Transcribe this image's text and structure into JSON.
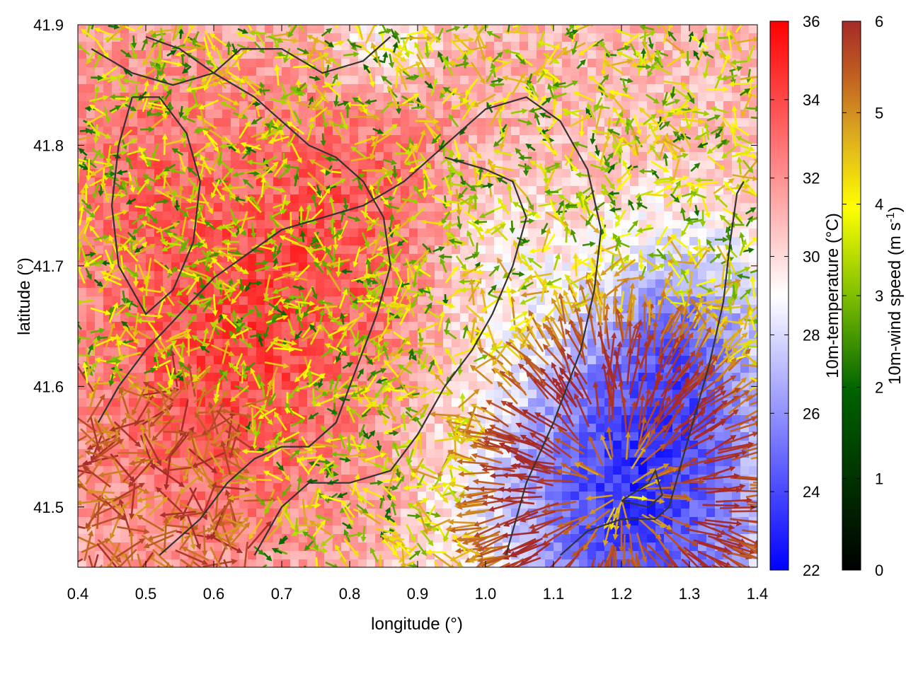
{
  "chart_data": {
    "type": "heatmap",
    "xlabel": "longitude (°)",
    "ylabel": "latitude (°)",
    "xlim": [
      0.4,
      1.4
    ],
    "ylim": [
      41.45,
      41.9
    ],
    "x_ticks": [
      "0.4",
      "0.5",
      "0.6",
      "0.7",
      "0.8",
      "0.9",
      "1.0",
      "1.1",
      "1.2",
      "1.3",
      "1.4"
    ],
    "y_ticks": [
      "41.5",
      "41.6",
      "41.7",
      "41.8",
      "41.9"
    ],
    "grid": false,
    "temperature_colorbar": {
      "label": "10m-temperature (°C)",
      "range": [
        22,
        36
      ],
      "ticks": [
        "22",
        "24",
        "26",
        "28",
        "30",
        "32",
        "34",
        "36"
      ],
      "colors": [
        "#0000ff",
        "#ffffff",
        "#ff0000"
      ]
    },
    "wind_colorbar": {
      "label_main": "10m-wind speed (m s",
      "label_exp": "-1",
      "label_end": ")",
      "range": [
        0,
        6
      ],
      "ticks": [
        "0",
        "1",
        "2",
        "3",
        "4",
        "5",
        "6"
      ],
      "colors": [
        "#000000",
        "#006400",
        "#7fbf00",
        "#ffff00",
        "#daa520",
        "#c06020",
        "#a52a2a"
      ]
    },
    "temperature_field": {
      "background_c": 31,
      "warm_zones": [
        {
          "lon": 0.62,
          "lat": 41.62,
          "radius": 0.22,
          "delta_c": 3.0
        },
        {
          "lon": 0.82,
          "lat": 41.76,
          "radius": 0.18,
          "delta_c": 2.0
        },
        {
          "lon": 0.48,
          "lat": 41.8,
          "radius": 0.14,
          "delta_c": 1.5
        }
      ],
      "cool_zones": [
        {
          "lon": 1.22,
          "lat": 41.51,
          "radius": 0.22,
          "delta_c": -7.5
        },
        {
          "lon": 1.3,
          "lat": 41.65,
          "radius": 0.12,
          "delta_c": -3.0
        },
        {
          "lon": 0.85,
          "lat": 41.89,
          "radius": 0.08,
          "delta_c": -2.5
        },
        {
          "lon": 1.0,
          "lat": 41.72,
          "radius": 0.1,
          "delta_c": -1.5
        }
      ]
    },
    "wind_field": {
      "outflow_center": {
        "lon": 1.2,
        "lat": 41.51
      },
      "outflow_speed_ms": 6,
      "ambient_speed_ms": [
        1,
        4
      ]
    },
    "contours": [
      [
        [
          0.52,
          41.46
        ],
        [
          0.58,
          41.49
        ],
        [
          0.62,
          41.52
        ],
        [
          0.66,
          41.54
        ],
        [
          0.7,
          41.55
        ],
        [
          0.74,
          41.55
        ],
        [
          0.78,
          41.57
        ],
        [
          0.8,
          41.6
        ],
        [
          0.84,
          41.66
        ],
        [
          0.86,
          41.7
        ],
        [
          0.85,
          41.74
        ],
        [
          0.82,
          41.77
        ],
        [
          0.78,
          41.79
        ],
        [
          0.74,
          41.8
        ],
        [
          0.7,
          41.82
        ],
        [
          0.66,
          41.84
        ],
        [
          0.6,
          41.86
        ],
        [
          0.55,
          41.88
        ],
        [
          0.5,
          41.89
        ]
      ],
      [
        [
          0.43,
          41.57
        ],
        [
          0.46,
          41.6
        ],
        [
          0.5,
          41.63
        ],
        [
          0.55,
          41.66
        ],
        [
          0.6,
          41.69
        ],
        [
          0.65,
          41.71
        ],
        [
          0.7,
          41.73
        ],
        [
          0.76,
          41.74
        ],
        [
          0.82,
          41.75
        ],
        [
          0.88,
          41.77
        ],
        [
          0.94,
          41.8
        ],
        [
          1.0,
          41.83
        ],
        [
          1.06,
          41.84
        ],
        [
          1.11,
          41.82
        ],
        [
          1.15,
          41.78
        ],
        [
          1.17,
          41.73
        ],
        [
          1.16,
          41.68
        ],
        [
          1.14,
          41.63
        ],
        [
          1.1,
          41.57
        ],
        [
          1.06,
          41.52
        ],
        [
          1.03,
          41.46
        ]
      ],
      [
        [
          0.66,
          41.46
        ],
        [
          0.7,
          41.5
        ],
        [
          0.74,
          41.52
        ],
        [
          0.8,
          41.52
        ],
        [
          0.86,
          41.53
        ],
        [
          0.9,
          41.56
        ],
        [
          0.94,
          41.6
        ],
        [
          0.98,
          41.63
        ],
        [
          1.01,
          41.66
        ],
        [
          1.04,
          41.7
        ],
        [
          1.06,
          41.74
        ],
        [
          1.04,
          41.77
        ],
        [
          1.0,
          41.78
        ],
        [
          0.94,
          41.79
        ]
      ],
      [
        [
          1.11,
          41.46
        ],
        [
          1.15,
          41.48
        ],
        [
          1.2,
          41.49
        ],
        [
          1.25,
          41.49
        ],
        [
          1.27,
          41.5
        ],
        [
          1.29,
          41.54
        ],
        [
          1.31,
          41.58
        ],
        [
          1.33,
          41.62
        ],
        [
          1.35,
          41.67
        ],
        [
          1.36,
          41.72
        ],
        [
          1.37,
          41.76
        ],
        [
          1.38,
          41.77
        ]
      ],
      [
        [
          0.42,
          41.88
        ],
        [
          0.48,
          41.86
        ],
        [
          0.54,
          41.85
        ],
        [
          0.6,
          41.86
        ],
        [
          0.64,
          41.88
        ],
        [
          0.7,
          41.88
        ],
        [
          0.76,
          41.86
        ],
        [
          0.82,
          41.87
        ],
        [
          0.86,
          41.89
        ]
      ],
      [
        [
          1.2,
          41.505
        ],
        [
          1.24,
          41.52
        ],
        [
          1.25,
          41.53
        ],
        [
          1.26,
          41.51
        ],
        [
          1.24,
          41.5
        ],
        [
          1.2,
          41.505
        ]
      ],
      [
        [
          0.48,
          41.84
        ],
        [
          0.46,
          41.8
        ],
        [
          0.45,
          41.75
        ],
        [
          0.46,
          41.7
        ],
        [
          0.5,
          41.66
        ],
        [
          0.54,
          41.68
        ],
        [
          0.57,
          41.72
        ],
        [
          0.58,
          41.77
        ],
        [
          0.56,
          41.81
        ],
        [
          0.52,
          41.84
        ],
        [
          0.48,
          41.84
        ]
      ]
    ]
  }
}
